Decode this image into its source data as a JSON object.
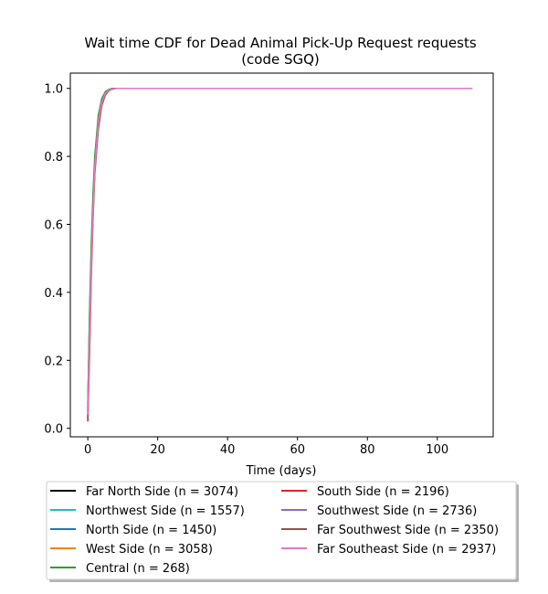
{
  "chart_data": {
    "type": "line",
    "title_lines": [
      "Wait time CDF for Dead Animal Pick-Up Request  requests",
      "(code SGQ)"
    ],
    "xlabel": "Time (days)",
    "ylabel": "",
    "xlim": [
      -5,
      116
    ],
    "ylim": [
      -0.025,
      1.045
    ],
    "xticks": [
      0,
      20,
      40,
      60,
      80,
      100
    ],
    "xtick_labels": [
      "0",
      "20",
      "40",
      "60",
      "80",
      "100"
    ],
    "yticks": [
      0.0,
      0.2,
      0.4,
      0.6,
      0.8,
      1.0
    ],
    "ytick_labels": [
      "0.0",
      "0.2",
      "0.4",
      "0.6",
      "0.8",
      "1.0"
    ],
    "grid": false,
    "legend_placement": "below",
    "series": [
      {
        "name": "Far North Side (n = 3074)",
        "color": "#000000",
        "x": [
          0,
          0.5,
          1,
          1.5,
          2,
          3,
          4,
          5,
          6,
          7,
          8,
          110
        ],
        "y": [
          0.05,
          0.3,
          0.5,
          0.65,
          0.78,
          0.9,
          0.96,
          0.985,
          0.995,
          0.998,
          1.0,
          1.0
        ]
      },
      {
        "name": "Northwest Side (n = 1557)",
        "color": "#17becf",
        "x": [
          0,
          0.5,
          1,
          1.5,
          2,
          3,
          4,
          5,
          6,
          7,
          8,
          110
        ],
        "y": [
          0.06,
          0.32,
          0.52,
          0.67,
          0.79,
          0.91,
          0.965,
          0.988,
          0.996,
          0.999,
          1.0,
          1.0
        ]
      },
      {
        "name": "North Side (n = 1450)",
        "color": "#1f77b4",
        "x": [
          0,
          0.5,
          1,
          1.5,
          2,
          3,
          4,
          5,
          6,
          7,
          8,
          110
        ],
        "y": [
          0.04,
          0.28,
          0.49,
          0.64,
          0.76,
          0.89,
          0.955,
          0.983,
          0.994,
          0.998,
          1.0,
          1.0
        ]
      },
      {
        "name": "West Side (n = 3058)",
        "color": "#ff7f0e",
        "x": [
          0,
          0.5,
          1,
          1.5,
          2,
          3,
          4,
          5,
          6,
          7,
          8,
          110
        ],
        "y": [
          0.05,
          0.31,
          0.51,
          0.66,
          0.78,
          0.905,
          0.962,
          0.986,
          0.995,
          0.998,
          1.0,
          1.0
        ]
      },
      {
        "name": "Central (n = 268)",
        "color": "#2ca02c",
        "x": [
          0,
          0.5,
          1,
          1.5,
          2,
          3,
          4,
          5,
          6,
          7,
          8,
          110
        ],
        "y": [
          0.07,
          0.34,
          0.54,
          0.69,
          0.8,
          0.92,
          0.97,
          0.99,
          0.997,
          1.0,
          1.0,
          1.0
        ]
      },
      {
        "name": "South Side (n = 2196)",
        "color": "#d62728",
        "x": [
          0,
          0.5,
          1,
          1.5,
          2,
          3,
          4,
          5,
          6,
          7,
          8,
          110
        ],
        "y": [
          0.02,
          0.22,
          0.45,
          0.62,
          0.75,
          0.88,
          0.95,
          0.98,
          0.993,
          0.998,
          1.0,
          1.0
        ]
      },
      {
        "name": "Southwest Side (n = 2736)",
        "color": "#9467bd",
        "x": [
          0,
          0.5,
          1,
          1.5,
          2,
          3,
          4,
          5,
          6,
          7,
          8,
          110
        ],
        "y": [
          0.03,
          0.25,
          0.47,
          0.63,
          0.76,
          0.89,
          0.955,
          0.982,
          0.994,
          0.998,
          1.0,
          1.0
        ]
      },
      {
        "name": "Far Southwest Side (n = 2350)",
        "color": "#8c564b",
        "x": [
          0,
          0.5,
          1,
          1.5,
          2,
          3,
          4,
          5,
          6,
          7,
          8,
          110
        ],
        "y": [
          0.03,
          0.26,
          0.48,
          0.64,
          0.77,
          0.895,
          0.958,
          0.984,
          0.995,
          0.998,
          1.0,
          1.0
        ]
      },
      {
        "name": "Far Southeast Side (n = 2937)",
        "color": "#e377c2",
        "x": [
          0,
          0.5,
          1,
          1.5,
          2,
          3,
          4,
          5,
          6,
          7,
          8,
          110
        ],
        "y": [
          0.04,
          0.27,
          0.48,
          0.64,
          0.77,
          0.9,
          0.96,
          0.985,
          0.995,
          0.998,
          1.0,
          1.0
        ]
      }
    ]
  }
}
